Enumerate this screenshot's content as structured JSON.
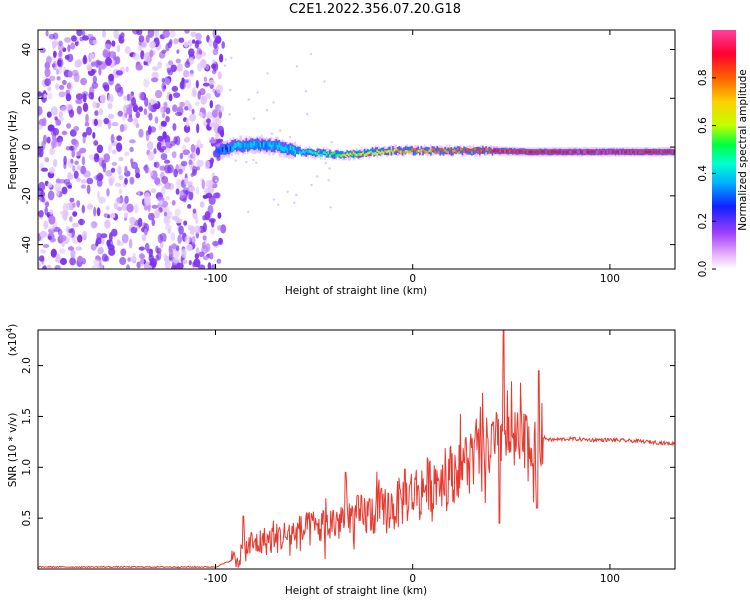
{
  "page": {
    "title": "C2E1.2022.356.07.20.G18"
  },
  "colors": {
    "snr_line": "#e8392f",
    "scatter_noise": "#8f3ef0",
    "colormap": [
      "#ffffff",
      "#e8b0ff",
      "#a040ff",
      "#1020ff",
      "#00b0ff",
      "#00ffd0",
      "#00ff40",
      "#c0ff00",
      "#ffd000",
      "#ff6000",
      "#ff0030",
      "#ff40a0"
    ]
  },
  "chart_data": [
    {
      "type": "heatmap",
      "title": "C2E1.2022.356.07.20.G18",
      "xlabel": "Height of straight line (km)",
      "ylabel": "Frequency (Hz)",
      "xlim": [
        -190,
        133
      ],
      "ylim": [
        -50,
        48
      ],
      "x_ticks": [
        -100,
        0,
        100
      ],
      "x_tick_labels": [
        "-100",
        "0",
        "100"
      ],
      "y_ticks": [
        -40,
        -20,
        0,
        20,
        40
      ],
      "y_tick_labels": [
        "-40",
        "-20",
        "0",
        "20",
        "40"
      ],
      "colorbar": {
        "label": "Normalized spectral amplitude",
        "range": [
          0.0,
          1.0
        ],
        "ticks": [
          0.0,
          0.2,
          0.4,
          0.6,
          0.8
        ],
        "tick_labels": [
          "0.0",
          "0.2",
          "0.4",
          "0.6",
          "0.8"
        ]
      },
      "noise_region": {
        "x": [
          -190,
          -100
        ],
        "freq": [
          -50,
          48
        ],
        "amplitude": 0.15
      },
      "signal_ridge": {
        "x": [
          -100,
          -90,
          -80,
          -70,
          -60,
          -50,
          -40,
          -30,
          -20,
          -10,
          0,
          20,
          40,
          60,
          80,
          100,
          133
        ],
        "freq": [
          -2.0,
          0.5,
          1.0,
          0.5,
          -1.5,
          -2.5,
          -3.0,
          -3.0,
          -2.0,
          -1.5,
          -1.5,
          -1.5,
          -1.5,
          -2.0,
          -2.0,
          -2.0,
          -2.0
        ],
        "amplitude": [
          0.25,
          0.35,
          0.35,
          0.35,
          0.38,
          0.45,
          0.55,
          0.6,
          0.65,
          0.7,
          0.75,
          0.8,
          0.85,
          0.9,
          0.95,
          0.95,
          0.9
        ]
      }
    },
    {
      "type": "line",
      "xlabel": "Height of straight line (km)",
      "ylabel": "SNR (10 * v/v)",
      "y_multiplier": "(x10^4)",
      "xlim": [
        -190,
        133
      ],
      "ylim": [
        0,
        2.35
      ],
      "x_ticks": [
        -100,
        0,
        100
      ],
      "x_tick_labels": [
        "-100",
        "0",
        "100"
      ],
      "y_ticks": [
        0.5,
        1.0,
        1.5,
        2.0
      ],
      "y_tick_labels": [
        "0.5",
        "1.0",
        "1.5",
        "2.0"
      ],
      "series": [
        {
          "x": [
            -190,
            -100,
            -90,
            -85,
            -80,
            -70,
            -60,
            -50,
            -40,
            -30,
            -20,
            -10,
            0,
            10,
            20,
            30,
            40,
            45,
            50,
            60,
            65,
            70,
            80,
            90,
            100,
            110,
            120,
            133
          ],
          "y": [
            0.02,
            0.02,
            0.1,
            0.2,
            0.25,
            0.3,
            0.35,
            0.4,
            0.45,
            0.5,
            0.55,
            0.6,
            0.75,
            0.85,
            0.95,
            1.1,
            1.2,
            1.3,
            1.25,
            1.2,
            1.3,
            1.27,
            1.28,
            1.27,
            1.27,
            1.26,
            1.25,
            1.23
          ],
          "spikes": [
            {
              "x": -86,
              "y": 0.52
            },
            {
              "x": -34,
              "y": 0.95
            },
            {
              "x": -4,
              "y": 0.98
            },
            {
              "x": 46,
              "y": 2.35
            },
            {
              "x": 44,
              "y": 0.45
            },
            {
              "x": 64,
              "y": 1.95
            },
            {
              "x": 63,
              "y": 0.6
            }
          ]
        }
      ]
    }
  ],
  "labels": {
    "top_xlabel": "Height of straight line (km)",
    "top_ylabel": "Frequency (Hz)",
    "colorbar_label": "Normalized spectral amplitude",
    "bottom_xlabel": "Height of straight line (km)",
    "bottom_ylabel": "SNR (10 * v/v)",
    "bottom_multiplier_base": "(x10",
    "bottom_multiplier_exp": "4",
    "bottom_multiplier_close": ")"
  }
}
